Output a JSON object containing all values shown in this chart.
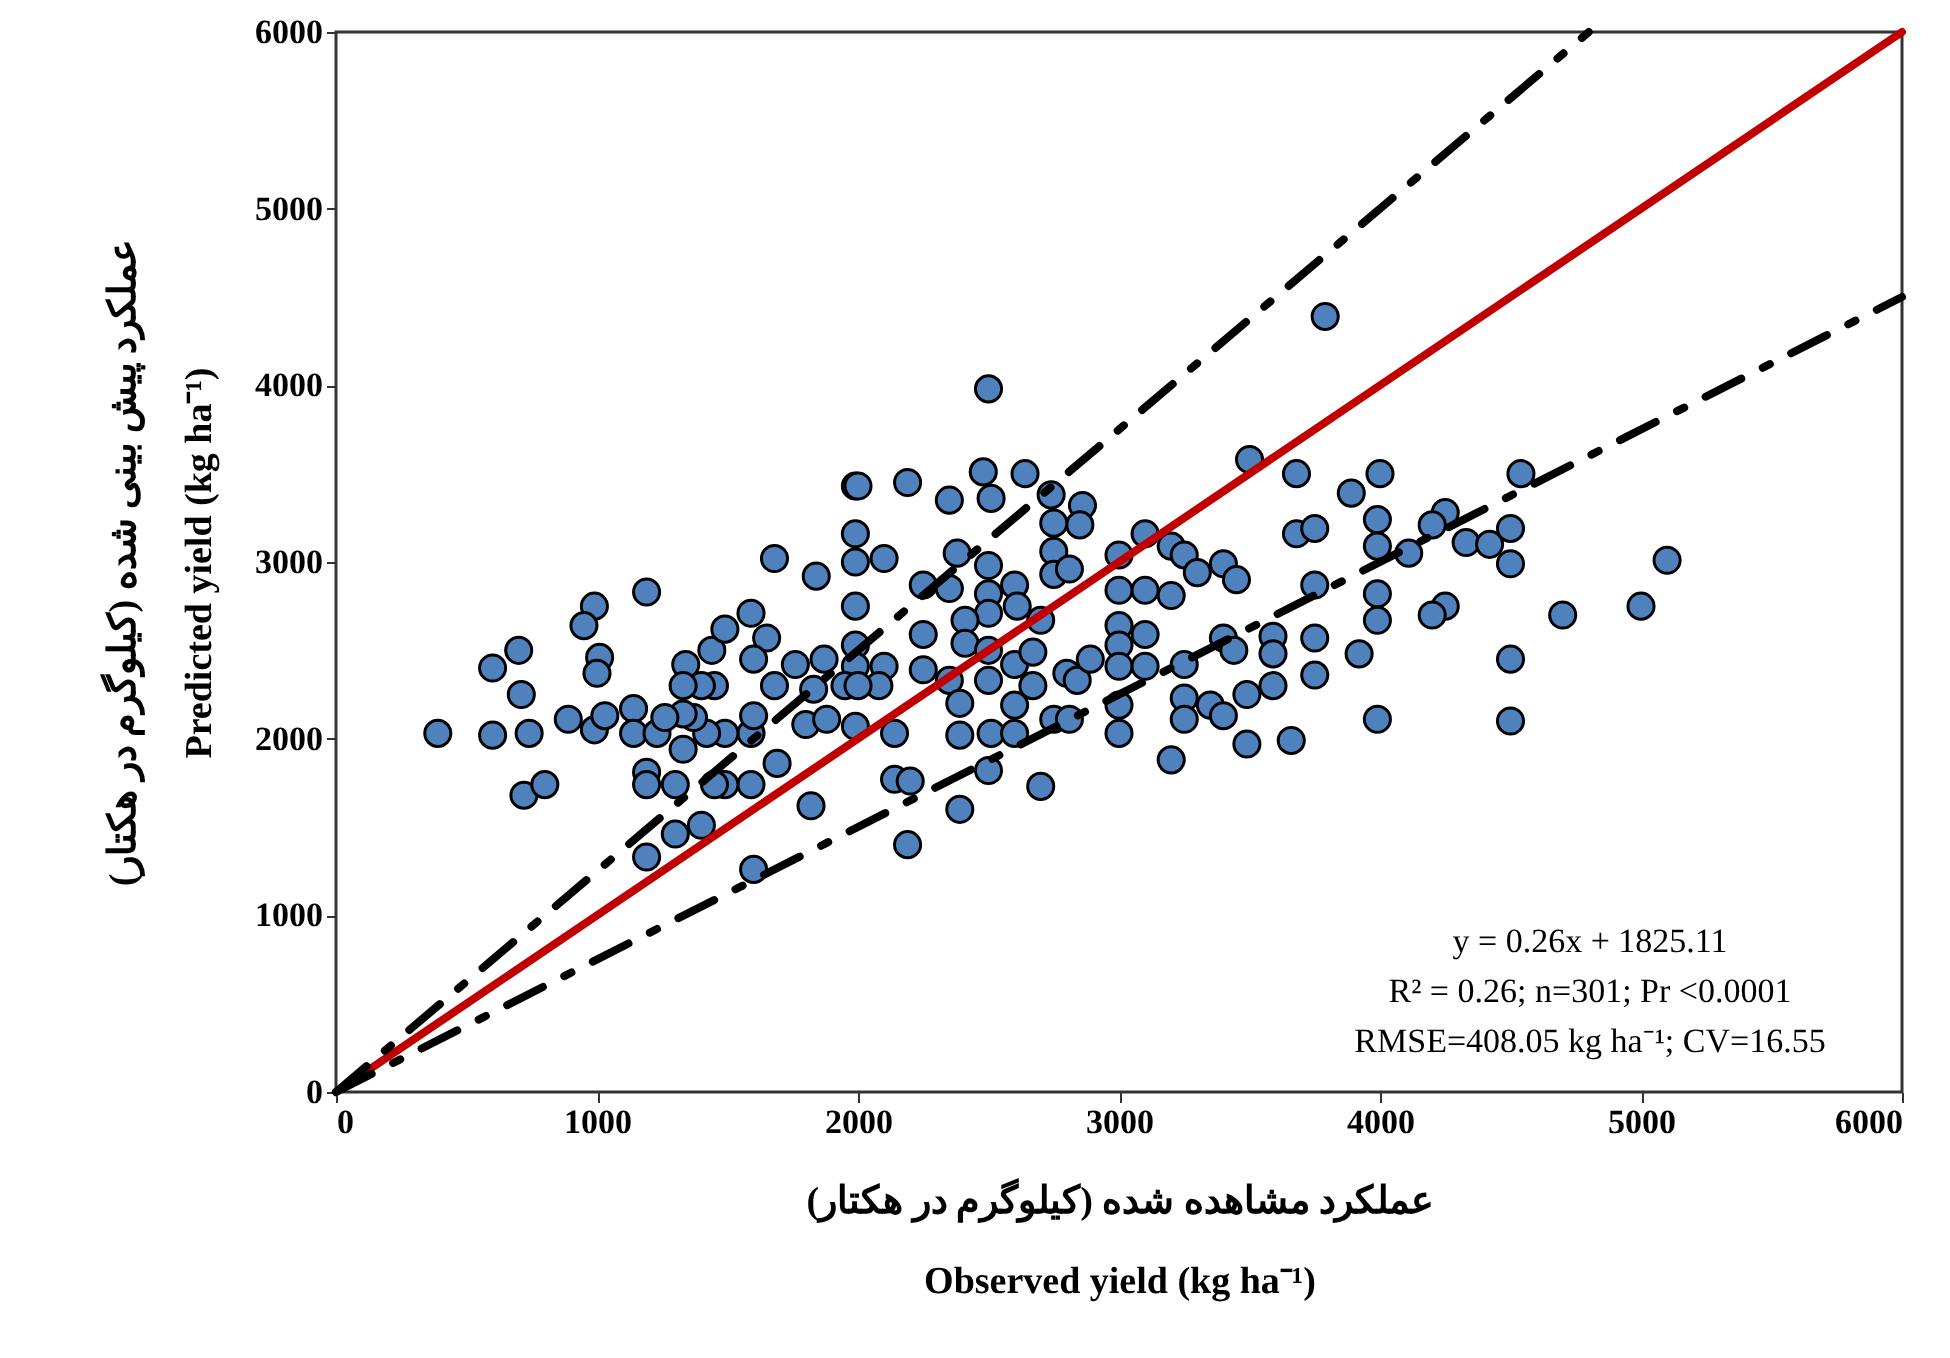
{
  "chart_data": {
    "type": "scatter",
    "xlabel": "عملکرد مشاهده شده (کیلوگرم در هکتار)\nObserved yield (kg ha⁻¹)",
    "ylabel": "عملکرد پیش بینی شده (کیلوگرم در هکتار)\nPredicted yield (kg ha⁻¹)",
    "xlim": [
      0,
      6000
    ],
    "ylim": [
      0,
      6000
    ],
    "xticks": [
      0,
      1000,
      2000,
      3000,
      4000,
      5000,
      6000
    ],
    "yticks": [
      0,
      1000,
      2000,
      3000,
      4000,
      5000,
      6000
    ],
    "annotations": [
      "y = 0.26x + 1825.11",
      "R² = 0.26;  n=301; Pr <0.0001",
      "RMSE=408.05 kg ha⁻¹; CV=16.55"
    ],
    "series": [
      {
        "marker": "circle",
        "color": "#4f81bd",
        "x": [
          1190,
          990,
          950,
          1010,
          1000,
          890,
          990,
          1030,
          1140,
          1140,
          1230,
          1190,
          1190,
          1300,
          1300,
          1400,
          1190,
          1600,
          1330,
          1340,
          1440,
          1490,
          1590,
          1650,
          1600,
          1680,
          1760,
          1830,
          1870,
          1680,
          1840,
          1990,
          1990,
          1990,
          1990,
          1990,
          1990,
          1950,
          1990,
          1820,
          1690,
          1590,
          1490,
          1450,
          1590,
          1490,
          1420,
          1370,
          1330,
          1260,
          1800,
          1880,
          1450,
          1400,
          1330,
          1600,
          390,
          600,
          600,
          700,
          710,
          740,
          720,
          800,
          3790,
          2500,
          2000,
          2190,
          2480,
          2510,
          2640,
          2350,
          2740,
          2860,
          2850,
          2750,
          2100,
          2380,
          2500,
          2750,
          2750,
          2810,
          2600,
          2250,
          2350,
          2500,
          2500,
          2410,
          2610,
          2700,
          2100,
          2080,
          2000,
          2140,
          2250,
          2250,
          2350,
          2410,
          2500,
          2500,
          2600,
          2670,
          2670,
          2800,
          2840,
          2890,
          2390,
          2390,
          2510,
          2600,
          2600,
          2750,
          2810,
          3000,
          3000,
          3000,
          3000,
          3000,
          3000,
          3000,
          3100,
          3100,
          3200,
          3250,
          3300,
          3400,
          3450,
          3200,
          3100,
          3100,
          3250,
          3250,
          3250,
          3350,
          3400,
          3400,
          3440,
          3500,
          3680,
          3890,
          4000,
          3990,
          3990,
          3680,
          3750,
          3750,
          3990,
          3990,
          3590,
          3590,
          3750,
          3750,
          3920,
          3490,
          3590,
          3490,
          3660,
          3990,
          3200,
          2700,
          2390,
          2190,
          2140,
          2200,
          2500,
          4540,
          4250,
          4200,
          4110,
          4330,
          4420,
          4500,
          4500,
          5100,
          4250,
          4200,
          4700,
          5000,
          4500,
          4500
        ],
        "values": [
          2830,
          2750,
          2640,
          2460,
          2370,
          2110,
          2050,
          2130,
          2170,
          2030,
          2030,
          1810,
          1740,
          1740,
          1460,
          1510,
          1330,
          1260,
          1940,
          2420,
          2500,
          2620,
          2710,
          2570,
          2450,
          2300,
          2420,
          2280,
          2450,
          3020,
          2920,
          3430,
          3160,
          3000,
          2750,
          2530,
          2410,
          2300,
          2070,
          1620,
          1860,
          1740,
          1740,
          1740,
          2030,
          2030,
          2030,
          2120,
          2140,
          2120,
          2080,
          2110,
          2300,
          2300,
          2300,
          2130,
          2030,
          2020,
          2400,
          2500,
          2250,
          2030,
          1680,
          1740,
          4390,
          3980,
          3430,
          3450,
          3510,
          3360,
          3500,
          3350,
          3380,
          3320,
          3210,
          3220,
          3020,
          3050,
          2980,
          3060,
          2930,
          2960,
          2870,
          2870,
          2850,
          2820,
          2710,
          2670,
          2750,
          2670,
          2410,
          2300,
          2300,
          2030,
          2590,
          2390,
          2330,
          2540,
          2500,
          2330,
          2420,
          2490,
          2300,
          2370,
          2330,
          2450,
          2200,
          2020,
          2030,
          2190,
          2030,
          2110,
          2110,
          2840,
          2640,
          2530,
          2410,
          2190,
          2030,
          3040,
          3160,
          2840,
          3090,
          3040,
          2940,
          2990,
          2900,
          2810,
          2590,
          2410,
          2420,
          2230,
          2110,
          2190,
          2130,
          2570,
          2500,
          3580,
          3500,
          3390,
          3500,
          3240,
          3090,
          3160,
          3190,
          2870,
          2820,
          2670,
          2580,
          2480,
          2570,
          2360,
          2480,
          2250,
          2300,
          1970,
          1990,
          2110,
          1880,
          1730,
          1600,
          1400,
          1770,
          1760,
          1820,
          3500,
          3280,
          3210,
          3050,
          3110,
          3100,
          3190,
          2990,
          3010,
          2750,
          2700,
          2700,
          2750,
          2450,
          2100
        ]
      },
      {
        "type": "line",
        "color": "#c00000",
        "line_style": "solid",
        "x": [
          0,
          6000
        ],
        "values": [
          0,
          6000
        ]
      },
      {
        "type": "line",
        "color": "#000000",
        "line_style": "dashed",
        "x": [
          0,
          4800
        ],
        "values": [
          0,
          6000
        ]
      },
      {
        "type": "line",
        "color": "#000000",
        "line_style": "dashed",
        "x": [
          0,
          6000
        ],
        "values": [
          0,
          4500
        ]
      }
    ]
  }
}
